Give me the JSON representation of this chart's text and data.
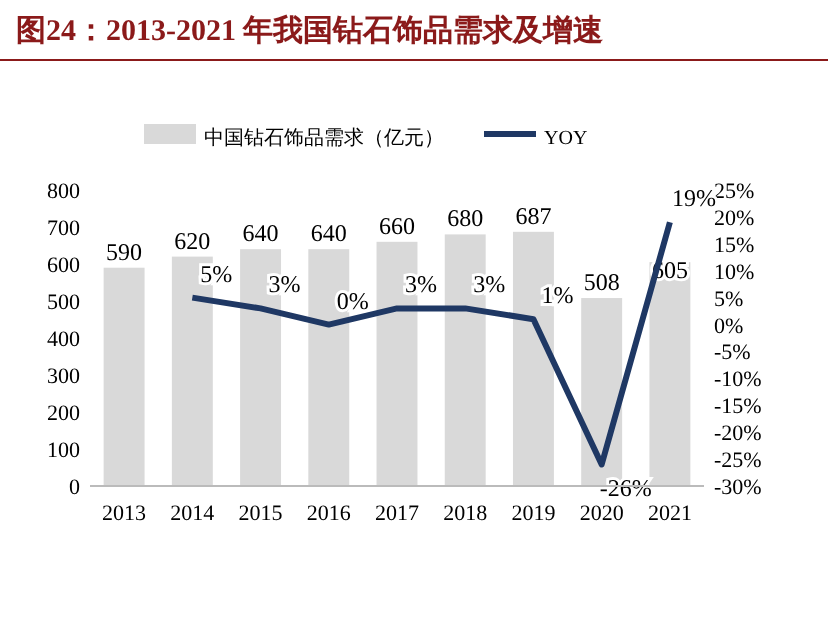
{
  "chart_data": {
    "type": "bar",
    "title": "图24：2013-2021 年我国钻石饰品需求及增速",
    "categories": [
      "2013",
      "2014",
      "2015",
      "2016",
      "2017",
      "2018",
      "2019",
      "2020",
      "2021"
    ],
    "series": [
      {
        "name": "中国钻石饰品需求（亿元）",
        "color": "#d9d9d9",
        "values": [
          590,
          620,
          640,
          640,
          660,
          680,
          687,
          508,
          605
        ],
        "value_labels": [
          "590",
          "620",
          "640",
          "640",
          "660",
          "680",
          "687",
          "508",
          "605"
        ]
      },
      {
        "name": "YOY",
        "type": "line",
        "axis": "y2",
        "color": "#1f3864",
        "values": [
          null,
          5,
          3,
          0,
          3,
          3,
          1,
          -26,
          19
        ],
        "value_labels": [
          null,
          "5%",
          "3%",
          "0%",
          "3%",
          "3%",
          "1%",
          "-26%",
          "19%"
        ]
      }
    ],
    "ylim": [
      0,
      800
    ],
    "yticks": [
      0,
      100,
      200,
      300,
      400,
      500,
      600,
      700,
      800
    ],
    "y2lim": [
      -30,
      25
    ],
    "y2ticks": [
      {
        "value": -30,
        "label": "-30%"
      },
      {
        "value": -25,
        "label": "-25%"
      },
      {
        "value": -20,
        "label": "-20%"
      },
      {
        "value": -15,
        "label": "-15%"
      },
      {
        "value": -10,
        "label": "-10%"
      },
      {
        "value": -5,
        "label": "-5%"
      },
      {
        "value": 0,
        "label": "0%"
      },
      {
        "value": 5,
        "label": "5%"
      },
      {
        "value": 10,
        "label": "10%"
      },
      {
        "value": 15,
        "label": "15%"
      },
      {
        "value": 20,
        "label": "20%"
      },
      {
        "value": 25,
        "label": "25%"
      }
    ],
    "legend": "top",
    "grid": false
  }
}
